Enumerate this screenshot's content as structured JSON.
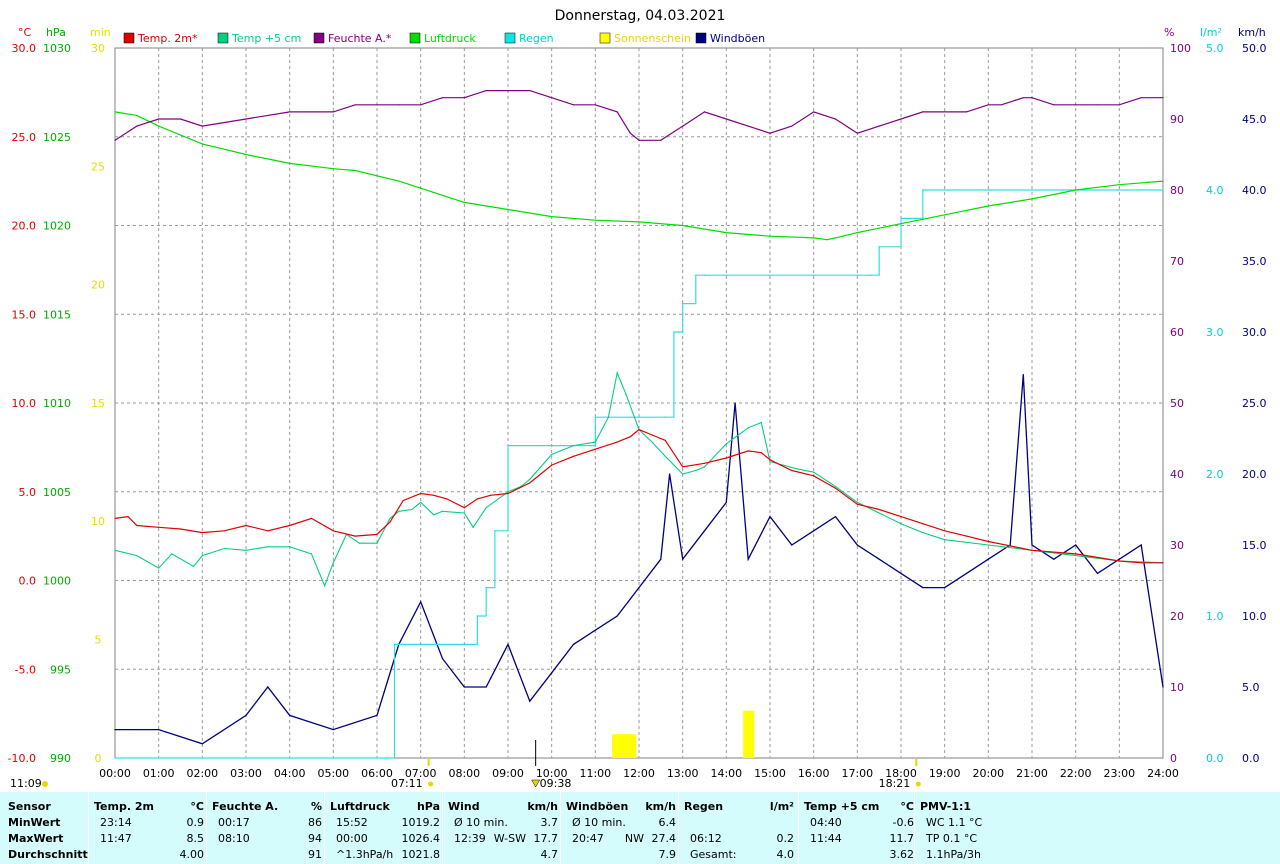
{
  "title": "Donnerstag, 04.03.2021",
  "legend": [
    {
      "label": "Temp. 2m*",
      "color": "#e00000"
    },
    {
      "label": "Temp +5 cm",
      "color": "#00d080"
    },
    {
      "label": "Feuchte A.*",
      "color": "#800080"
    },
    {
      "label": "Luftdruck",
      "color": "#00dd00"
    },
    {
      "label": "Regen",
      "color": "#00e8e8"
    },
    {
      "label": "Sonnenschein",
      "color": "#ffff00"
    },
    {
      "label": "Windböen",
      "color": "#000080"
    }
  ],
  "axes": {
    "temp": {
      "unit": "°C",
      "ticks": [
        "30.0",
        "25.0",
        "20.0",
        "15.0",
        "10.0",
        "5.0",
        "0.0",
        "-5.0",
        "-10.0"
      ],
      "color": "#e00000"
    },
    "press": {
      "unit": "hPa",
      "ticks": [
        "1030",
        "1025",
        "1020",
        "1015",
        "1010",
        "1005",
        "1000",
        "995",
        "990"
      ],
      "color": "#00aa00"
    },
    "sun": {
      "unit": "min",
      "ticks": [
        "30",
        "25",
        "20",
        "15",
        "10",
        "5",
        "0"
      ],
      "color": "#e0e000"
    },
    "hum": {
      "unit": "%",
      "ticks": [
        "100",
        "90",
        "80",
        "70",
        "60",
        "50",
        "40",
        "30",
        "20",
        "10",
        "0"
      ],
      "color": "#800080"
    },
    "rain": {
      "unit": "l/m²",
      "ticks": [
        "5.0",
        "4.0",
        "3.0",
        "2.0",
        "1.0",
        "0.0"
      ],
      "color": "#00d0d0"
    },
    "wind": {
      "unit": "km/h",
      "ticks": [
        "50.0",
        "45.0",
        "40.0",
        "35.0",
        "30.0",
        "25.0",
        "20.0",
        "15.0",
        "10.0",
        "5.0",
        "0.0"
      ],
      "color": "#000080"
    },
    "x_ticks": [
      "00:00",
      "01:00",
      "02:00",
      "03:00",
      "04:00",
      "05:00",
      "06:00",
      "07:00",
      "08:00",
      "09:00",
      "10:00",
      "11:00",
      "12:00",
      "13:00",
      "14:00",
      "15:00",
      "16:00",
      "17:00",
      "18:00",
      "19:00",
      "20:00",
      "21:00",
      "22:00",
      "23:00",
      "24:00"
    ]
  },
  "markers": {
    "sunrise": "07:11",
    "sunset": "18:21",
    "noon": "09:38",
    "daylength": "11:09"
  },
  "chart_data": {
    "type": "line",
    "title": "Donnerstag, 04.03.2021",
    "x_unit": "hours",
    "xlim": [
      0,
      24
    ],
    "grid": true,
    "legend_position": "top",
    "series": [
      {
        "name": "Temp. 2m*",
        "axis": "°C",
        "ylim": [
          -10,
          30
        ],
        "x": [
          0,
          0.3,
          0.5,
          1,
          1.5,
          2,
          2.5,
          3,
          3.5,
          4,
          4.5,
          5,
          5.5,
          6,
          6.3,
          6.6,
          7,
          7.3,
          7.6,
          8,
          8.3,
          8.6,
          9,
          9.5,
          10,
          10.5,
          11,
          11.5,
          11.8,
          12,
          12.3,
          12.6,
          13,
          13.5,
          14,
          14.5,
          14.8,
          15,
          15.5,
          16,
          16.5,
          17,
          17.5,
          18,
          18.5,
          19,
          19.5,
          20,
          21,
          22,
          23,
          23.5,
          24
        ],
        "y": [
          3.5,
          3.6,
          3.1,
          3.0,
          2.9,
          2.7,
          2.8,
          3.1,
          2.8,
          3.1,
          3.5,
          2.8,
          2.5,
          2.6,
          3.3,
          4.5,
          4.9,
          4.8,
          4.6,
          4.1,
          4.6,
          4.8,
          4.9,
          5.5,
          6.5,
          7.0,
          7.4,
          7.8,
          8.1,
          8.5,
          8.2,
          7.9,
          6.4,
          6.6,
          6.9,
          7.3,
          7.2,
          6.8,
          6.2,
          5.9,
          5.2,
          4.3,
          4.0,
          3.6,
          3.2,
          2.8,
          2.5,
          2.2,
          1.7,
          1.5,
          1.1,
          1.0,
          1.0
        ]
      },
      {
        "name": "Temp +5 cm",
        "axis": "°C",
        "ylim": [
          -10,
          30
        ],
        "x": [
          0,
          0.5,
          1,
          1.3,
          1.8,
          2,
          2.5,
          3,
          3.5,
          4,
          4.5,
          4.8,
          5,
          5.3,
          5.6,
          6,
          6.3,
          6.5,
          6.8,
          7,
          7.3,
          7.5,
          8,
          8.2,
          8.5,
          9,
          9.3,
          9.5,
          10,
          10.5,
          11,
          11.3,
          11.5,
          11.7,
          12,
          12.3,
          12.6,
          13,
          13.3,
          13.5,
          14,
          14.5,
          14.8,
          15,
          15.3,
          15.6,
          16,
          16.5,
          17,
          17.5,
          18,
          18.5,
          19,
          20,
          21,
          22,
          23,
          24
        ],
        "y": [
          1.7,
          1.4,
          0.7,
          1.5,
          0.8,
          1.4,
          1.8,
          1.7,
          1.9,
          1.9,
          1.5,
          -0.3,
          1.0,
          2.6,
          2.1,
          2.1,
          3.5,
          3.9,
          4.0,
          4.4,
          3.7,
          3.9,
          3.8,
          3.0,
          4.1,
          5.0,
          5.3,
          5.7,
          7.1,
          7.6,
          7.8,
          9.2,
          11.7,
          10.5,
          8.5,
          7.8,
          7.0,
          6.0,
          6.2,
          6.4,
          7.7,
          8.6,
          8.9,
          6.7,
          6.5,
          6.3,
          6.1,
          5.3,
          4.4,
          3.8,
          3.2,
          2.7,
          2.3,
          2.0,
          1.7,
          1.4,
          1.1,
          1.0
        ]
      },
      {
        "name": "Feuchte A.*",
        "axis": "%",
        "ylim": [
          0,
          100
        ],
        "x": [
          0,
          0.5,
          1,
          1.5,
          2,
          3,
          4,
          5,
          5.5,
          6,
          6.5,
          7,
          7.5,
          8,
          8.5,
          9,
          9.5,
          10,
          10.5,
          11,
          11.5,
          11.8,
          12,
          12.5,
          13,
          13.5,
          14,
          14.5,
          15,
          15.5,
          16,
          16.5,
          17,
          17.5,
          18,
          18.5,
          19,
          19.5,
          20,
          20.3,
          20.8,
          21,
          21.5,
          22,
          22.5,
          23,
          23.5,
          24
        ],
        "y": [
          87,
          89,
          90,
          90,
          89,
          90,
          91,
          91,
          92,
          92,
          92,
          92,
          93,
          93,
          94,
          94,
          94,
          93,
          92,
          92,
          91,
          88,
          87,
          87,
          89,
          91,
          90,
          89,
          88,
          89,
          91,
          90,
          88,
          89,
          90,
          91,
          91,
          91,
          92,
          92,
          93,
          93,
          92,
          92,
          92,
          92,
          93,
          93
        ]
      },
      {
        "name": "Luftdruck",
        "axis": "hPa",
        "ylim": [
          990,
          1030
        ],
        "x": [
          0,
          0.5,
          1,
          1.5,
          2,
          3,
          4,
          5,
          5.5,
          6,
          6.5,
          7,
          8,
          9,
          10,
          11,
          12,
          13,
          14,
          15,
          16,
          16.3,
          16.5,
          17,
          18,
          19,
          20,
          21,
          22,
          23,
          24
        ],
        "y": [
          1026.4,
          1026.2,
          1025.6,
          1025.1,
          1024.6,
          1024.0,
          1023.5,
          1023.2,
          1023.1,
          1022.8,
          1022.5,
          1022.1,
          1021.3,
          1020.9,
          1020.5,
          1020.3,
          1020.2,
          1020.0,
          1019.6,
          1019.4,
          1019.3,
          1019.2,
          1019.3,
          1019.6,
          1020.1,
          1020.6,
          1021.1,
          1021.5,
          1022.0,
          1022.3,
          1022.5
        ]
      },
      {
        "name": "Regen",
        "axis": "l/m²",
        "ylim": [
          0,
          5
        ],
        "x": [
          0,
          6.2,
          6.4,
          7.0,
          8.0,
          8.3,
          8.5,
          8.7,
          9.0,
          10.0,
          11.0,
          12.0,
          12.6,
          12.8,
          13.0,
          13.3,
          13.5,
          14.0,
          15.0,
          16.0,
          17.0,
          17.3,
          17.5,
          18.0,
          18.2,
          18.5,
          19.0,
          20.0,
          21.0,
          22.0,
          23.0,
          24.0
        ],
        "y": [
          0,
          0,
          0.8,
          0.8,
          0.8,
          1.0,
          1.2,
          1.6,
          2.2,
          2.2,
          2.4,
          2.4,
          2.4,
          3.0,
          3.2,
          3.4,
          3.4,
          3.4,
          3.4,
          3.4,
          3.4,
          3.4,
          3.6,
          3.8,
          3.8,
          4.0,
          4.0,
          4.0,
          4.0,
          4.0,
          4.0,
          4.0
        ]
      },
      {
        "name": "Sonnenschein",
        "axis": "min",
        "ylim": [
          0,
          30
        ],
        "x": [
          11.5,
          11.6,
          11.7,
          11.8,
          14.5
        ],
        "y": [
          1,
          1,
          1,
          1,
          2
        ]
      },
      {
        "name": "Windböen",
        "axis": "km/h",
        "ylim": [
          0,
          50
        ],
        "x": [
          0,
          1,
          2,
          3,
          3.5,
          4,
          5,
          6,
          6.5,
          7,
          7.5,
          8,
          8.5,
          9,
          9.5,
          10,
          10.5,
          11,
          11.5,
          12,
          12.5,
          12.7,
          13,
          13.5,
          14,
          14.2,
          14.5,
          15,
          15.5,
          16,
          16.5,
          17,
          17.5,
          18,
          18.5,
          19,
          19.5,
          20,
          20.5,
          20.8,
          21,
          21.5,
          22,
          22.5,
          23,
          23.5,
          24
        ],
        "y": [
          2,
          2,
          1,
          3,
          5,
          3,
          2,
          3,
          8,
          11,
          7,
          5,
          5,
          8,
          4,
          6,
          8,
          9,
          10,
          12,
          14,
          20,
          14,
          16,
          18,
          25,
          14,
          17,
          15,
          16,
          17,
          15,
          14,
          13,
          12,
          12,
          13,
          14,
          15,
          27,
          15,
          14,
          15,
          13,
          14,
          15,
          5
        ]
      }
    ]
  },
  "stats": {
    "columns": [
      {
        "header": "Sensor",
        "unit": "",
        "rows": [
          [
            "MinWert",
            "",
            ""
          ],
          [
            "MaxWert",
            "",
            ""
          ],
          [
            "Durchschnitt",
            "",
            ""
          ]
        ]
      },
      {
        "header": "Temp. 2m",
        "unit": "°C",
        "rows": [
          [
            "23:14",
            "",
            "0.9"
          ],
          [
            "11:47",
            "",
            "8.5"
          ],
          [
            "",
            "",
            "4.00"
          ]
        ]
      },
      {
        "header": "Feuchte A.",
        "unit": "%",
        "rows": [
          [
            "00:17",
            "",
            "86"
          ],
          [
            "08:10",
            "",
            "94"
          ],
          [
            "",
            "",
            "91"
          ]
        ]
      },
      {
        "header": "Luftdruck",
        "unit": "hPa",
        "rows": [
          [
            "15:52",
            "",
            "1019.2"
          ],
          [
            "00:00",
            "",
            "1026.4"
          ],
          [
            "^1.3hPa/h",
            "",
            "1021.8"
          ]
        ]
      },
      {
        "header": "Wind",
        "unit": "km/h",
        "rows": [
          [
            "Ø 10 min.",
            "",
            "3.7"
          ],
          [
            "12:39",
            "W-SW",
            "17.7"
          ],
          [
            "",
            "",
            "4.7"
          ]
        ]
      },
      {
        "header": "Windböen",
        "unit": "km/h",
        "rows": [
          [
            "Ø 10 min.",
            "",
            "6.4"
          ],
          [
            "20:47",
            "NW",
            "27.4"
          ],
          [
            "",
            "",
            "7.9"
          ]
        ]
      },
      {
        "header": "Regen",
        "unit": "l/m²",
        "rows": [
          [
            "",
            "",
            ""
          ],
          [
            "06:12",
            "",
            "0.2"
          ],
          [
            "Gesamt:",
            "",
            "4.0"
          ]
        ]
      },
      {
        "header": "Temp +5 cm",
        "unit": "°C",
        "rows": [
          [
            "04:40",
            "",
            "-0.6"
          ],
          [
            "11:44",
            "",
            "11.7"
          ],
          [
            "",
            "",
            "3.62"
          ]
        ]
      },
      {
        "header": "PMV-1:1",
        "unit": "",
        "rows": [
          [
            "WC 1.1 °C",
            "",
            ""
          ],
          [
            "TP 0.1 °C",
            "",
            ""
          ],
          [
            "1.1hPa/3h",
            "",
            ""
          ]
        ]
      }
    ]
  }
}
